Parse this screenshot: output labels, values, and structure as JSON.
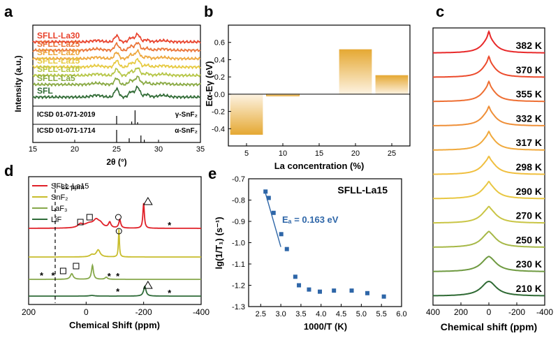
{
  "panel_labels": [
    "a",
    "b",
    "c",
    "d",
    "e"
  ],
  "chart_data": [
    {
      "id": "a",
      "type": "line",
      "title": "",
      "xlabel": "2θ (°)",
      "ylabel": "Intensity (a.u.)",
      "xlim": [
        15,
        35
      ],
      "xticks": [
        "15",
        "20",
        "25",
        "30",
        "35"
      ],
      "series": [
        {
          "name": "SFLL-La30",
          "color": "#e8412b"
        },
        {
          "name": "SFLL-La25",
          "color": "#ea7336"
        },
        {
          "name": "SFLL-La20",
          "color": "#eda63b"
        },
        {
          "name": "SFLL-La15",
          "color": "#e6c93e"
        },
        {
          "name": "SFLL-La10",
          "color": "#b5c544"
        },
        {
          "name": "SFLL-La5",
          "color": "#87a840"
        },
        {
          "name": "SFL",
          "color": "#2f6a34"
        }
      ],
      "references": [
        {
          "label": "ICSD 01-071-2019",
          "phase": "γ-SnF₂",
          "peaks_2theta": [
            25.0,
            26.8,
            27.2,
            27.5
          ]
        },
        {
          "label": "ICSD 01-071-1714",
          "phase": "α-SnF₂",
          "peaks_2theta": [
            25.0,
            26.5,
            27.9,
            28.3
          ]
        }
      ]
    },
    {
      "id": "b",
      "type": "bar",
      "xlabel": "La concentration (%)",
      "ylabel": "Eα-Eγ (eV)",
      "categories": [
        "5",
        "10",
        "15",
        "20",
        "25"
      ],
      "x": [
        5,
        10,
        20,
        25
      ],
      "values": [
        -0.47,
        -0.02,
        0.52,
        0.22
      ],
      "ylim": [
        -0.6,
        0.8
      ],
      "yticks": [
        "-0.4",
        "-0.2",
        "0.0",
        "0.2",
        "0.4",
        "0.6"
      ],
      "xticks": [
        "5",
        "10",
        "15",
        "20",
        "25"
      ],
      "color": "#e5a832"
    },
    {
      "id": "c",
      "type": "line",
      "xlabel": "Chemical shift (ppm)",
      "xlim": [
        400,
        -400
      ],
      "xticks": [
        "-400",
        "-200",
        "0",
        "200",
        "400"
      ],
      "series": [
        {
          "name": "382 K",
          "color": "#e8292a"
        },
        {
          "name": "370 K",
          "color": "#ec4b2d"
        },
        {
          "name": "355 K",
          "color": "#ee6f33"
        },
        {
          "name": "332 K",
          "color": "#ef8f38"
        },
        {
          "name": "317 K",
          "color": "#f0a93c"
        },
        {
          "name": "298 K",
          "color": "#f0bf3f"
        },
        {
          "name": "290 K",
          "color": "#e8c742"
        },
        {
          "name": "270 K",
          "color": "#c9c545"
        },
        {
          "name": "250 K",
          "color": "#a6b847"
        },
        {
          "name": "230 K",
          "color": "#6f9a41"
        },
        {
          "name": "210 K",
          "color": "#2f6a34"
        }
      ]
    },
    {
      "id": "d",
      "type": "line",
      "xlabel": "Chemical Shift (ppm)",
      "xlim": [
        200,
        -400
      ],
      "xticks": [
        "200",
        "0",
        "-200",
        "-400"
      ],
      "annotation": "-82 ppm",
      "marker_star": "*",
      "series": [
        {
          "name": "SFLL-La15",
          "color": "#e02028"
        },
        {
          "name": "SnF₂",
          "color": "#c8bd2c"
        },
        {
          "name": "LaF₃",
          "color": "#86a84a"
        },
        {
          "name": "LiF",
          "color": "#2e6b38"
        }
      ]
    },
    {
      "id": "e",
      "type": "scatter",
      "title": "SFLL-La15",
      "xlabel": "1000/T (K)",
      "ylabel": "lg(1/T₁) (s⁻¹)",
      "annotation": "Eₐ = 0.163 eV",
      "xlim": [
        2.2,
        6.0
      ],
      "ylim": [
        -1.3,
        -0.7
      ],
      "xticks": [
        "2.5",
        "3.0",
        "3.5",
        "4.0",
        "4.5",
        "5.0",
        "5.5",
        "6.0"
      ],
      "yticks": [
        "-0.7",
        "-0.8",
        "-0.9",
        "-1.0",
        "-1.1",
        "-1.2",
        "-1.3"
      ],
      "color": "#2e66a8",
      "x": [
        2.62,
        2.7,
        2.82,
        3.01,
        3.15,
        3.36,
        3.45,
        3.7,
        3.97,
        4.32,
        4.76,
        5.15,
        5.56
      ],
      "y": [
        -0.76,
        -0.79,
        -0.86,
        -0.96,
        -1.03,
        -1.16,
        -1.2,
        -1.22,
        -1.23,
        -1.225,
        -1.225,
        -1.237,
        -1.253
      ],
      "fit": {
        "x": [
          2.6,
          3.0
        ],
        "y": [
          -0.755,
          -1.02
        ]
      }
    }
  ]
}
